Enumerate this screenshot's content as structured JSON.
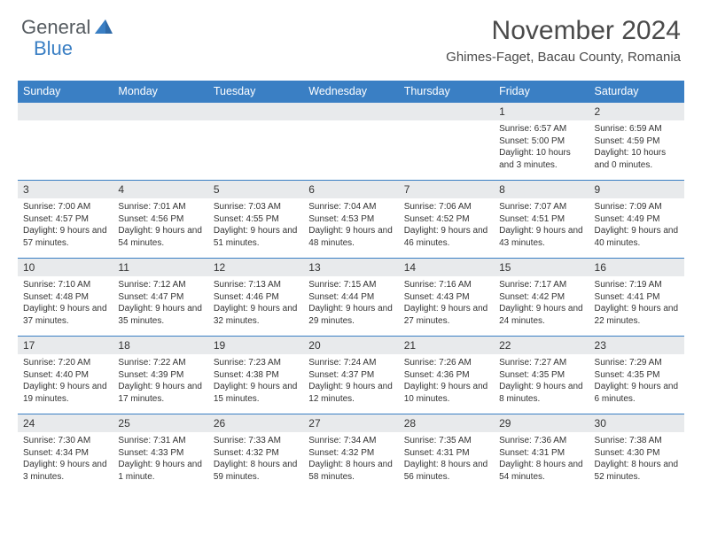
{
  "brand": {
    "main": "General",
    "sub": "Blue"
  },
  "title": "November 2024",
  "location": "Ghimes-Faget, Bacau County, Romania",
  "colors": {
    "header_bg": "#3a7fc4",
    "header_text": "#ffffff",
    "daynum_bg": "#e8eaec",
    "cell_border": "#3a7fc4",
    "text": "#333333",
    "brand_gray": "#555b60",
    "brand_blue": "#3a7fc4"
  },
  "weekdays": [
    "Sunday",
    "Monday",
    "Tuesday",
    "Wednesday",
    "Thursday",
    "Friday",
    "Saturday"
  ],
  "weeks": [
    [
      {
        "n": "",
        "sr": "",
        "ss": "",
        "dl": ""
      },
      {
        "n": "",
        "sr": "",
        "ss": "",
        "dl": ""
      },
      {
        "n": "",
        "sr": "",
        "ss": "",
        "dl": ""
      },
      {
        "n": "",
        "sr": "",
        "ss": "",
        "dl": ""
      },
      {
        "n": "",
        "sr": "",
        "ss": "",
        "dl": ""
      },
      {
        "n": "1",
        "sr": "Sunrise: 6:57 AM",
        "ss": "Sunset: 5:00 PM",
        "dl": "Daylight: 10 hours and 3 minutes."
      },
      {
        "n": "2",
        "sr": "Sunrise: 6:59 AM",
        "ss": "Sunset: 4:59 PM",
        "dl": "Daylight: 10 hours and 0 minutes."
      }
    ],
    [
      {
        "n": "3",
        "sr": "Sunrise: 7:00 AM",
        "ss": "Sunset: 4:57 PM",
        "dl": "Daylight: 9 hours and 57 minutes."
      },
      {
        "n": "4",
        "sr": "Sunrise: 7:01 AM",
        "ss": "Sunset: 4:56 PM",
        "dl": "Daylight: 9 hours and 54 minutes."
      },
      {
        "n": "5",
        "sr": "Sunrise: 7:03 AM",
        "ss": "Sunset: 4:55 PM",
        "dl": "Daylight: 9 hours and 51 minutes."
      },
      {
        "n": "6",
        "sr": "Sunrise: 7:04 AM",
        "ss": "Sunset: 4:53 PM",
        "dl": "Daylight: 9 hours and 48 minutes."
      },
      {
        "n": "7",
        "sr": "Sunrise: 7:06 AM",
        "ss": "Sunset: 4:52 PM",
        "dl": "Daylight: 9 hours and 46 minutes."
      },
      {
        "n": "8",
        "sr": "Sunrise: 7:07 AM",
        "ss": "Sunset: 4:51 PM",
        "dl": "Daylight: 9 hours and 43 minutes."
      },
      {
        "n": "9",
        "sr": "Sunrise: 7:09 AM",
        "ss": "Sunset: 4:49 PM",
        "dl": "Daylight: 9 hours and 40 minutes."
      }
    ],
    [
      {
        "n": "10",
        "sr": "Sunrise: 7:10 AM",
        "ss": "Sunset: 4:48 PM",
        "dl": "Daylight: 9 hours and 37 minutes."
      },
      {
        "n": "11",
        "sr": "Sunrise: 7:12 AM",
        "ss": "Sunset: 4:47 PM",
        "dl": "Daylight: 9 hours and 35 minutes."
      },
      {
        "n": "12",
        "sr": "Sunrise: 7:13 AM",
        "ss": "Sunset: 4:46 PM",
        "dl": "Daylight: 9 hours and 32 minutes."
      },
      {
        "n": "13",
        "sr": "Sunrise: 7:15 AM",
        "ss": "Sunset: 4:44 PM",
        "dl": "Daylight: 9 hours and 29 minutes."
      },
      {
        "n": "14",
        "sr": "Sunrise: 7:16 AM",
        "ss": "Sunset: 4:43 PM",
        "dl": "Daylight: 9 hours and 27 minutes."
      },
      {
        "n": "15",
        "sr": "Sunrise: 7:17 AM",
        "ss": "Sunset: 4:42 PM",
        "dl": "Daylight: 9 hours and 24 minutes."
      },
      {
        "n": "16",
        "sr": "Sunrise: 7:19 AM",
        "ss": "Sunset: 4:41 PM",
        "dl": "Daylight: 9 hours and 22 minutes."
      }
    ],
    [
      {
        "n": "17",
        "sr": "Sunrise: 7:20 AM",
        "ss": "Sunset: 4:40 PM",
        "dl": "Daylight: 9 hours and 19 minutes."
      },
      {
        "n": "18",
        "sr": "Sunrise: 7:22 AM",
        "ss": "Sunset: 4:39 PM",
        "dl": "Daylight: 9 hours and 17 minutes."
      },
      {
        "n": "19",
        "sr": "Sunrise: 7:23 AM",
        "ss": "Sunset: 4:38 PM",
        "dl": "Daylight: 9 hours and 15 minutes."
      },
      {
        "n": "20",
        "sr": "Sunrise: 7:24 AM",
        "ss": "Sunset: 4:37 PM",
        "dl": "Daylight: 9 hours and 12 minutes."
      },
      {
        "n": "21",
        "sr": "Sunrise: 7:26 AM",
        "ss": "Sunset: 4:36 PM",
        "dl": "Daylight: 9 hours and 10 minutes."
      },
      {
        "n": "22",
        "sr": "Sunrise: 7:27 AM",
        "ss": "Sunset: 4:35 PM",
        "dl": "Daylight: 9 hours and 8 minutes."
      },
      {
        "n": "23",
        "sr": "Sunrise: 7:29 AM",
        "ss": "Sunset: 4:35 PM",
        "dl": "Daylight: 9 hours and 6 minutes."
      }
    ],
    [
      {
        "n": "24",
        "sr": "Sunrise: 7:30 AM",
        "ss": "Sunset: 4:34 PM",
        "dl": "Daylight: 9 hours and 3 minutes."
      },
      {
        "n": "25",
        "sr": "Sunrise: 7:31 AM",
        "ss": "Sunset: 4:33 PM",
        "dl": "Daylight: 9 hours and 1 minute."
      },
      {
        "n": "26",
        "sr": "Sunrise: 7:33 AM",
        "ss": "Sunset: 4:32 PM",
        "dl": "Daylight: 8 hours and 59 minutes."
      },
      {
        "n": "27",
        "sr": "Sunrise: 7:34 AM",
        "ss": "Sunset: 4:32 PM",
        "dl": "Daylight: 8 hours and 58 minutes."
      },
      {
        "n": "28",
        "sr": "Sunrise: 7:35 AM",
        "ss": "Sunset: 4:31 PM",
        "dl": "Daylight: 8 hours and 56 minutes."
      },
      {
        "n": "29",
        "sr": "Sunrise: 7:36 AM",
        "ss": "Sunset: 4:31 PM",
        "dl": "Daylight: 8 hours and 54 minutes."
      },
      {
        "n": "30",
        "sr": "Sunrise: 7:38 AM",
        "ss": "Sunset: 4:30 PM",
        "dl": "Daylight: 8 hours and 52 minutes."
      }
    ]
  ]
}
